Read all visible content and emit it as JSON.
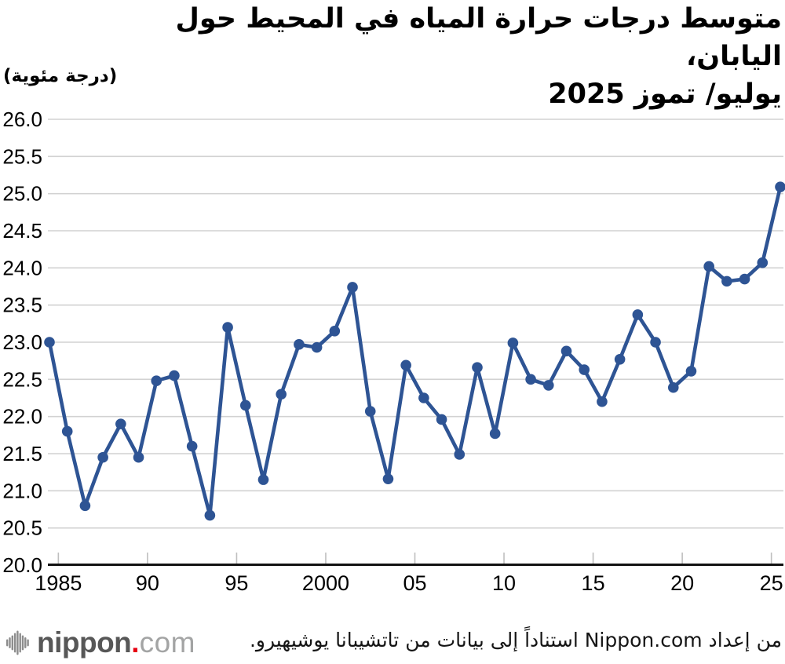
{
  "title": {
    "line1": "متوسط درجات حرارة المياه في المحيط حول اليابان،",
    "line2": "يوليو/ تموز 2025"
  },
  "unit_label": "(درجة مئوية)",
  "chart_data": {
    "type": "line",
    "title": "متوسط درجات حرارة المياه في المحيط حول اليابان، يوليو/ تموز 2025",
    "xlabel": "",
    "ylabel": "درجة مئوية",
    "x": [
      1984,
      1985,
      1986,
      1987,
      1988,
      1989,
      1990,
      1991,
      1992,
      1993,
      1994,
      1995,
      1996,
      1997,
      1998,
      1999,
      2000,
      2001,
      2002,
      2003,
      2004,
      2005,
      2006,
      2007,
      2008,
      2009,
      2010,
      2011,
      2012,
      2013,
      2014,
      2015,
      2016,
      2017,
      2018,
      2019,
      2020,
      2021,
      2022,
      2023,
      2024,
      2025
    ],
    "values": [
      23.0,
      21.8,
      20.8,
      21.45,
      21.9,
      21.45,
      22.48,
      22.55,
      21.6,
      20.67,
      23.2,
      22.15,
      21.15,
      22.3,
      22.97,
      22.93,
      23.15,
      23.74,
      22.07,
      21.16,
      22.69,
      22.25,
      21.96,
      21.49,
      22.66,
      21.77,
      22.99,
      22.5,
      22.42,
      22.88,
      22.63,
      22.2,
      22.77,
      23.37,
      23.0,
      22.39,
      22.61,
      24.02,
      23.82,
      23.85,
      24.07,
      25.09
    ],
    "ylim": [
      20.0,
      26.0
    ],
    "ytick_step": 0.5,
    "xticks": [
      1985,
      1990,
      1995,
      2000,
      2005,
      2010,
      2015,
      2020,
      2025
    ],
    "xtick_labels": [
      "1985",
      "90",
      "95",
      "2000",
      "05",
      "10",
      "15",
      "20",
      "25"
    ],
    "grid": true,
    "legend": "none",
    "line_color": "#2e5494",
    "grid_color": "#d2d2d2",
    "axis_color": "#111111",
    "tick_color": "#bfbfbf"
  },
  "footer": {
    "logo": {
      "icon": "soundwave-bars-icon",
      "name_bold": "nippon",
      "dot": ".",
      "name_light": "com",
      "dot_color": "#e60012"
    },
    "source_text": "من إعداد Nippon.com استناداً إلى بيانات من تاتشيبانا يوشيهيرو."
  }
}
